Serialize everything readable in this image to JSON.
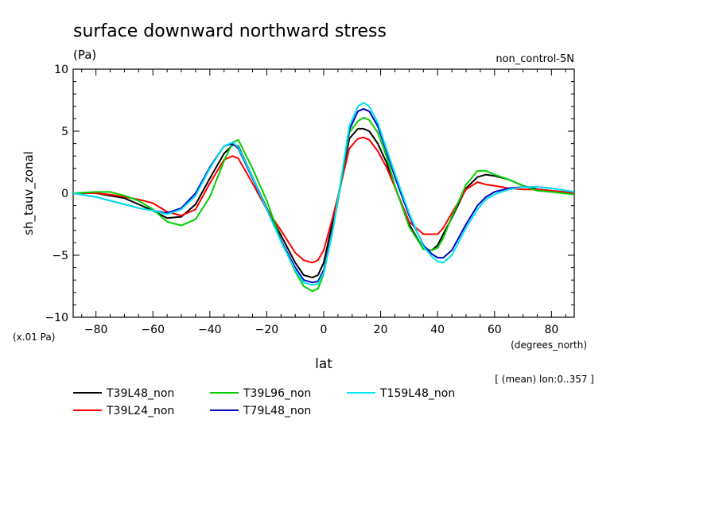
{
  "chart_data": {
    "type": "line",
    "title": "surface downward northward stress",
    "units": "(Pa)",
    "experiment": "non_control-5N",
    "ylabel": "sh_tauv_zonal",
    "y_scale_note": "(x.01 Pa)",
    "xlabel": "lat",
    "x_units": "(degrees_north)",
    "mean_note": "[ (mean) lon:0..357 ]",
    "xlim": [
      -88,
      88
    ],
    "ylim": [
      -10,
      10
    ],
    "x_ticks": [
      -80,
      -60,
      -40,
      -20,
      0,
      20,
      40,
      60,
      80
    ],
    "x_tick_labels": [
      "−80",
      "−60",
      "−40",
      "−20",
      "0",
      "20",
      "40",
      "60",
      "80"
    ],
    "y_ticks": [
      -10,
      -5,
      0,
      5,
      10
    ],
    "y_tick_labels": [
      "−10",
      "−5",
      "0",
      "5",
      "10"
    ],
    "x": [
      -88,
      -80,
      -75,
      -70,
      -65,
      -60,
      -55,
      -50,
      -45,
      -40,
      -35,
      -32,
      -30,
      -25,
      -20,
      -15,
      -10,
      -7,
      -4,
      -2,
      0,
      3,
      6,
      9,
      12,
      14,
      16,
      19,
      22,
      25,
      30,
      35,
      38,
      40,
      42,
      45,
      50,
      54,
      57,
      60,
      65,
      70,
      75,
      80,
      88
    ],
    "series": [
      {
        "name": "T39L48_non",
        "color": "#000000",
        "values": [
          0,
          0,
          -0.2,
          -0.4,
          -0.9,
          -1.4,
          -2.0,
          -1.9,
          -0.9,
          1.2,
          3.2,
          3.9,
          3.8,
          1.3,
          -1.2,
          -3.4,
          -5.6,
          -6.6,
          -6.8,
          -6.6,
          -5.6,
          -2.5,
          0.8,
          4.4,
          5.2,
          5.2,
          5.0,
          4.0,
          2.5,
          0.5,
          -2.5,
          -4.5,
          -4.6,
          -4.2,
          -3.3,
          -2.0,
          0.4,
          1.3,
          1.5,
          1.4,
          1.1,
          0.6,
          0.3,
          0.2,
          0
        ]
      },
      {
        "name": "T39L24_non",
        "color": "#ff0000",
        "values": [
          0,
          0,
          -0.1,
          -0.3,
          -0.5,
          -0.8,
          -1.5,
          -1.8,
          -1.3,
          0.8,
          2.7,
          3.0,
          2.8,
          0.8,
          -1.3,
          -3.0,
          -4.8,
          -5.4,
          -5.6,
          -5.4,
          -4.6,
          -2.1,
          0.7,
          3.6,
          4.4,
          4.5,
          4.3,
          3.4,
          2.1,
          0.5,
          -2.3,
          -3.3,
          -3.3,
          -3.3,
          -2.8,
          -1.6,
          0.3,
          0.9,
          0.7,
          0.6,
          0.4,
          0.3,
          0.3,
          0.2,
          0
        ]
      },
      {
        "name": "T39L96_non",
        "color": "#00d000",
        "values": [
          0,
          0.1,
          0.1,
          -0.2,
          -0.6,
          -1.3,
          -2.3,
          -2.6,
          -2.1,
          -0.3,
          2.6,
          4.1,
          4.3,
          2.0,
          -0.6,
          -3.8,
          -6.3,
          -7.5,
          -7.9,
          -7.7,
          -6.5,
          -3.2,
          0.7,
          4.9,
          5.8,
          6.1,
          5.9,
          4.9,
          3.0,
          0.6,
          -2.7,
          -4.5,
          -4.6,
          -4.4,
          -3.6,
          -1.9,
          0.7,
          1.8,
          1.8,
          1.5,
          1.1,
          0.6,
          0.2,
          0.1,
          -0.1
        ]
      },
      {
        "name": "T79L48_non",
        "color": "#0000cc",
        "values": [
          0,
          -0.3,
          -0.6,
          -0.9,
          -1.2,
          -1.4,
          -1.6,
          -1.2,
          0.0,
          2.1,
          3.8,
          4.0,
          3.6,
          1.2,
          -1.3,
          -3.8,
          -6.0,
          -7.0,
          -7.2,
          -7.1,
          -6.2,
          -3.2,
          0.9,
          5.1,
          6.6,
          6.8,
          6.6,
          5.4,
          3.4,
          1.3,
          -1.8,
          -4.2,
          -4.9,
          -5.2,
          -5.2,
          -4.6,
          -2.5,
          -1.0,
          -0.3,
          0.1,
          0.4,
          0.5,
          0.5,
          0.4,
          0.1
        ]
      },
      {
        "name": "T159L48_non",
        "color": "#00e5ee",
        "values": [
          0,
          -0.3,
          -0.6,
          -0.9,
          -1.2,
          -1.4,
          -1.7,
          -1.3,
          -0.2,
          2.0,
          3.8,
          4.1,
          3.7,
          1.3,
          -1.3,
          -3.9,
          -6.2,
          -7.2,
          -7.4,
          -7.3,
          -6.4,
          -3.3,
          1.0,
          5.4,
          7.0,
          7.3,
          7.0,
          5.7,
          3.6,
          1.6,
          -1.6,
          -4.3,
          -5.1,
          -5.5,
          -5.6,
          -5.0,
          -2.8,
          -1.3,
          -0.5,
          -0.1,
          0.3,
          0.5,
          0.5,
          0.4,
          0.1
        ]
      }
    ],
    "legend": [
      {
        "label": "T39L48_non",
        "color": "#000000"
      },
      {
        "label": "T39L96_non",
        "color": "#00d000"
      },
      {
        "label": "T159L48_non",
        "color": "#00e5ee"
      },
      {
        "label": "T39L24_non",
        "color": "#ff0000"
      },
      {
        "label": "T79L48_non",
        "color": "#0000cc"
      }
    ],
    "legend_placement": "bottom-left"
  }
}
